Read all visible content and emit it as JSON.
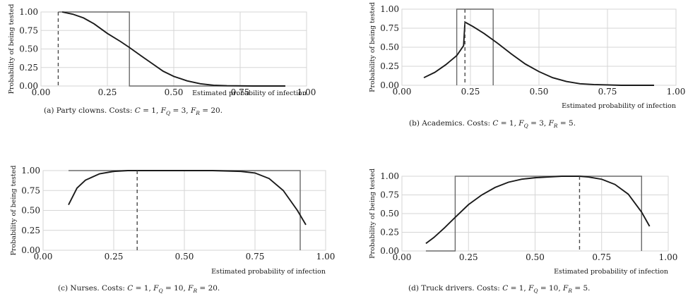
{
  "chart_data": [
    {
      "type": "line",
      "caption": "(a) Party clowns. Costs: C = 1, F_Q = 3, F_R = 20.",
      "caption_parts": {
        "prefix": "(a) Party clowns.  Costs: ",
        "C": "1",
        "FQ": "3",
        "FR": "20"
      },
      "xlabel": "Estimated probability of infection",
      "ylabel": "Probability of being tested",
      "xlim": [
        0,
        1
      ],
      "ylim": [
        0,
        1
      ],
      "xticks": [
        "0.00",
        "0.25",
        "0.50",
        "0.75",
        "1.00"
      ],
      "yticks": [
        "0.00",
        "0.25",
        "0.50",
        "0.75",
        "1.00"
      ],
      "grid": true,
      "dashed_x": 0.065,
      "step_x": [
        0.065,
        0.065,
        0.333,
        0.333,
        0.92
      ],
      "step_y": [
        1.0,
        1.0,
        1.0,
        0.0,
        0.0
      ],
      "series": [
        {
          "x": [
            0.08,
            0.12,
            0.16,
            0.2,
            0.25,
            0.3,
            0.333,
            0.38,
            0.42,
            0.46,
            0.5,
            0.55,
            0.6,
            0.65,
            0.7,
            0.8,
            0.92
          ],
          "y": [
            1.0,
            0.97,
            0.92,
            0.84,
            0.71,
            0.6,
            0.52,
            0.4,
            0.3,
            0.2,
            0.13,
            0.07,
            0.03,
            0.01,
            0.004,
            0.0,
            0.0
          ]
        }
      ]
    },
    {
      "type": "line",
      "caption": "(b) Academics. Costs: C = 1, F_Q = 3, F_R = 5.",
      "caption_parts": {
        "prefix": "(b) Academics.  Costs: ",
        "C": "1",
        "FQ": "3",
        "FR": "5"
      },
      "xlabel": "Estimated probability of infection",
      "ylabel": "Probability of being tested",
      "xlim": [
        0,
        1
      ],
      "ylim": [
        0,
        1
      ],
      "xticks": [
        "0.00",
        "0.25",
        "0.50",
        "0.75",
        "1.00"
      ],
      "yticks": [
        "0.00",
        "0.25",
        "0.50",
        "0.75",
        "1.00"
      ],
      "grid": true,
      "dashed_x": 0.23,
      "step_x": [
        0.2,
        0.2,
        0.333,
        0.333
      ],
      "step_y": [
        0.0,
        1.0,
        1.0,
        0.0
      ],
      "series": [
        {
          "x": [
            0.08,
            0.12,
            0.16,
            0.2,
            0.225,
            0.23,
            0.26,
            0.3,
            0.35,
            0.4,
            0.45,
            0.5,
            0.55,
            0.6,
            0.65,
            0.7,
            0.8,
            0.92
          ],
          "y": [
            0.1,
            0.17,
            0.27,
            0.39,
            0.52,
            0.83,
            0.77,
            0.68,
            0.55,
            0.41,
            0.28,
            0.18,
            0.1,
            0.05,
            0.02,
            0.01,
            0.0,
            0.0
          ]
        }
      ]
    },
    {
      "type": "line",
      "caption": "(c) Nurses. Costs: C = 1, F_Q = 10, F_R = 20.",
      "caption_parts": {
        "prefix": "(c) Nurses.  Costs: ",
        "C": "1",
        "FQ": "10",
        "FR": "20"
      },
      "xlabel": "Estimated probability of infection",
      "ylabel": "Probability of being tested",
      "xlim": [
        0,
        1
      ],
      "ylim": [
        0,
        1
      ],
      "xticks": [
        "0.00",
        "0.25",
        "0.50",
        "0.75",
        "1.00"
      ],
      "yticks": [
        "0.00",
        "0.25",
        "0.50",
        "0.75",
        "1.00"
      ],
      "grid": true,
      "dashed_x": 0.333,
      "step_x": [
        0.09,
        0.91,
        0.91
      ],
      "step_y": [
        1.0,
        1.0,
        0.0
      ],
      "series": [
        {
          "x": [
            0.09,
            0.12,
            0.15,
            0.2,
            0.25,
            0.3,
            0.4,
            0.5,
            0.6,
            0.7,
            0.75,
            0.8,
            0.85,
            0.9,
            0.93
          ],
          "y": [
            0.57,
            0.78,
            0.88,
            0.96,
            0.99,
            1.0,
            1.0,
            1.0,
            1.0,
            0.99,
            0.97,
            0.9,
            0.75,
            0.5,
            0.32
          ]
        }
      ]
    },
    {
      "type": "line",
      "caption": "(d) Truck drivers. Costs: C = 1, F_Q = 10, F_R = 5.",
      "caption_parts": {
        "prefix": "(d) Truck drivers.  Costs: ",
        "C": "1",
        "FQ": "10",
        "FR": "5"
      },
      "xlabel": "Estimated probability of infection",
      "ylabel": "Probability of being tested",
      "xlim": [
        0,
        1
      ],
      "ylim": [
        0,
        1
      ],
      "xticks": [
        "0.00",
        "0.25",
        "0.50",
        "0.75",
        "1.00"
      ],
      "yticks": [
        "0.00",
        "0.25",
        "0.50",
        "0.75",
        "1.00"
      ],
      "grid": true,
      "dashed_x": 0.667,
      "step_x": [
        0.09,
        0.2,
        0.2,
        0.9,
        0.9
      ],
      "step_y": [
        0.0,
        0.0,
        1.0,
        1.0,
        0.0
      ],
      "series": [
        {
          "x": [
            0.09,
            0.12,
            0.16,
            0.2,
            0.25,
            0.3,
            0.35,
            0.4,
            0.45,
            0.5,
            0.55,
            0.6,
            0.667,
            0.7,
            0.75,
            0.8,
            0.85,
            0.9,
            0.93
          ],
          "y": [
            0.1,
            0.18,
            0.31,
            0.45,
            0.62,
            0.75,
            0.85,
            0.92,
            0.96,
            0.98,
            0.99,
            1.0,
            1.0,
            0.99,
            0.96,
            0.89,
            0.76,
            0.52,
            0.33
          ]
        }
      ]
    }
  ]
}
